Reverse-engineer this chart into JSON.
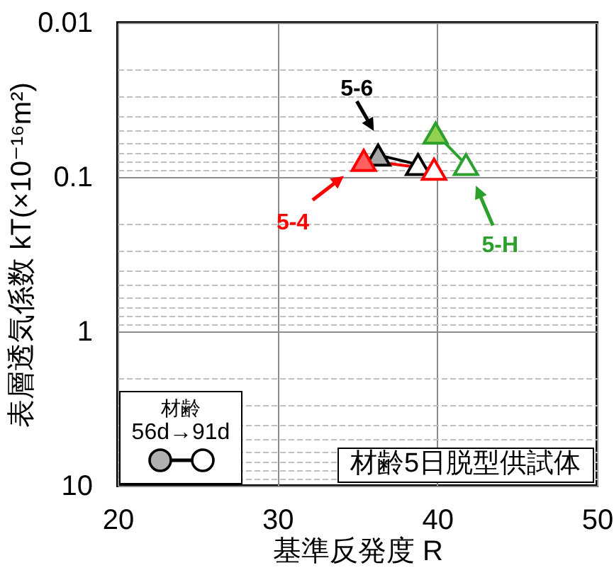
{
  "chart_data": {
    "type": "line",
    "xlabel": "基準反発度 R",
    "ylabel": "表層透気係数 kT(×10⁻¹⁶m²)",
    "xlim": [
      20,
      50
    ],
    "xticks": [
      20,
      30,
      40,
      50
    ],
    "ylim": [
      10,
      0.01
    ],
    "yticks": [
      0.01,
      {
        "value": 0.02,
        "label": null
      },
      {
        "value": 0.03,
        "label": null
      },
      {
        "value": 0.04,
        "label": null
      },
      {
        "value": 0.05,
        "label": null
      },
      {
        "value": 0.06,
        "label": null
      },
      {
        "value": 0.07,
        "label": null
      },
      {
        "value": 0.08,
        "label": null
      },
      {
        "value": 0.09,
        "label": null
      },
      0.1,
      {
        "value": 0.2,
        "label": null
      },
      {
        "value": 0.3,
        "label": null
      },
      {
        "value": 0.4,
        "label": null
      },
      {
        "value": 0.5,
        "label": null
      },
      {
        "value": 0.6,
        "label": null
      },
      {
        "value": 0.7,
        "label": null
      },
      {
        "value": 0.8,
        "label": null
      },
      {
        "value": 0.9,
        "label": null
      },
      1,
      {
        "value": 2,
        "label": null
      },
      {
        "value": 3,
        "label": null
      },
      {
        "value": 4,
        "label": null
      },
      {
        "value": 5,
        "label": null
      },
      {
        "value": 6,
        "label": null
      },
      {
        "value": 7,
        "label": null
      },
      {
        "value": 8,
        "label": null
      },
      {
        "value": 9,
        "label": null
      },
      10
    ],
    "log": true,
    "grid": true,
    "marker": "triangle",
    "legend": "top right",
    "annotations": [
      "材齢",
      "56d→91d",
      "材齢5日脱型供試体"
    ],
    "series": [
      {
        "name": "5-6",
        "color": "#000000",
        "colors": [
          "#a6a6a6",
          "#ffffff"
        ],
        "x": [
          36.3,
          38.8
        ],
        "values": [
          0.072,
          0.083
        ]
      },
      {
        "name": "5-4",
        "color": "#ff0000",
        "colors": [
          "#ff6161",
          "#ffffff"
        ],
        "x": [
          35.4,
          39.8
        ],
        "values": [
          0.078,
          0.089
        ]
      },
      {
        "name": "5-H",
        "color": "#2ca02c",
        "colors": [
          "#92d050",
          "#ffffff"
        ],
        "x": [
          39.9,
          41.8
        ],
        "values": [
          0.052,
          0.083
        ]
      }
    ]
  }
}
